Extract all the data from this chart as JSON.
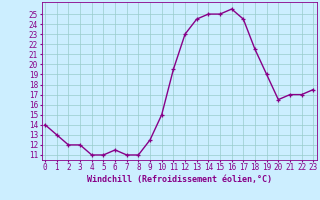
{
  "x": [
    0,
    1,
    2,
    3,
    4,
    5,
    6,
    7,
    8,
    9,
    10,
    11,
    12,
    13,
    14,
    15,
    16,
    17,
    18,
    19,
    20,
    21,
    22,
    23
  ],
  "y": [
    14,
    13,
    12,
    12,
    11,
    11,
    11.5,
    11,
    11,
    12.5,
    15,
    19.5,
    23,
    24.5,
    25,
    25,
    25.5,
    24.5,
    21.5,
    19,
    16.5,
    17,
    17,
    17.5
  ],
  "line_color": "#880088",
  "marker": "+",
  "marker_color": "#880088",
  "bg_color": "#cceeff",
  "grid_color": "#99cccc",
  "xlabel": "Windchill (Refroidissement éolien,°C)",
  "xlabel_color": "#880088",
  "xlabel_fontsize": 6.0,
  "xtick_labels": [
    "0",
    "1",
    "2",
    "3",
    "4",
    "5",
    "6",
    "7",
    "8",
    "9",
    "10",
    "11",
    "12",
    "13",
    "14",
    "15",
    "16",
    "17",
    "18",
    "19",
    "20",
    "21",
    "22",
    "23"
  ],
  "ytick_min": 11,
  "ytick_max": 25,
  "ylim_min": 10.5,
  "ylim_max": 26.2,
  "xlim_min": -0.3,
  "xlim_max": 23.3,
  "tick_color": "#880088",
  "tick_fontsize": 5.5,
  "linewidth": 1.0,
  "markersize": 3.5
}
